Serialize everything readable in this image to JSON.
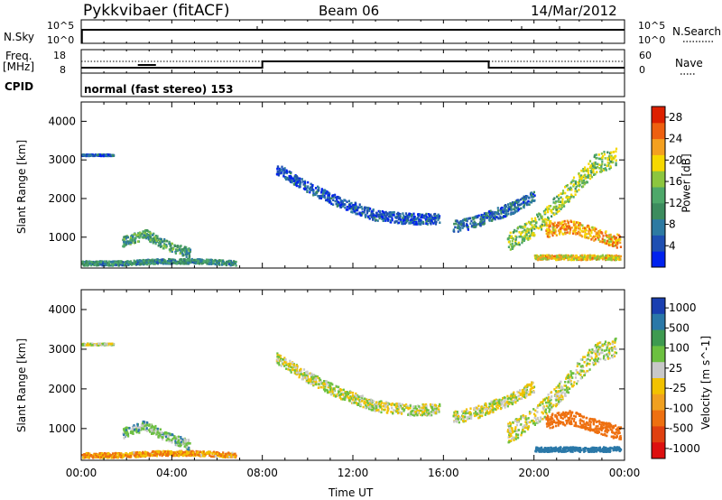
{
  "header": {
    "radar": "Pykkvibaer (fitACF)",
    "beam": "Beam 06",
    "date": "14/Mar/2012"
  },
  "noise_panel": {
    "left_label": "N.Sky",
    "right_label": "N.Search",
    "left_ticks": [
      "10^5",
      "10^0"
    ],
    "right_ticks": [
      "10^5",
      "10^0"
    ]
  },
  "freq_panel": {
    "left_label_line1": "Freq.",
    "left_label_line2": "[MHz]",
    "left_ticks": [
      "18",
      "8"
    ],
    "right_label": "Nave",
    "right_ticks": [
      "60",
      "0"
    ]
  },
  "cpid": {
    "label": "CPID",
    "value": "normal (fast stereo) 153"
  },
  "x_axis": {
    "label": "Time UT",
    "ticks": [
      "00:00",
      "04:00",
      "08:00",
      "12:00",
      "16:00",
      "20:00",
      "00:00"
    ]
  },
  "colors": {
    "power_scale": [
      "#0022ee",
      "#1e4fb2",
      "#2d7aa2",
      "#3c8c5e",
      "#4ea86a",
      "#8cc63f",
      "#f6d800",
      "#f4a020",
      "#ee6010",
      "#dd2000"
    ],
    "velocity_scale": [
      "#1a3fb0",
      "#2a78a8",
      "#3e9a50",
      "#6cc040",
      "#c8c8c8",
      "#f2c200",
      "#f0a020",
      "#ee7010",
      "#e04010",
      "#dd1010"
    ]
  },
  "chart_data": [
    {
      "type": "heatmap",
      "name": "power",
      "ylabel": "Slant Range [km]",
      "xlabel": "",
      "ylim": [
        200,
        4500
      ],
      "y_ticks": [
        1000,
        2000,
        3000,
        4000
      ],
      "colorbar_label": "Power [dB]",
      "colorbar_ticks": [
        4,
        8,
        12,
        16,
        20,
        24,
        28
      ],
      "colorbar_range": [
        0,
        30
      ],
      "scatter_regions": [
        {
          "t0": 8.6,
          "t1": 15.8,
          "r": [
            2800,
            2300,
            1900,
            1600,
            1500,
            1500
          ],
          "spread": 280,
          "db": 5
        },
        {
          "t0": 16.4,
          "t1": 20.0,
          "r": [
            1300,
            1400,
            1600,
            1800,
            2100
          ],
          "spread": 300,
          "db": 7
        },
        {
          "t0": 18.8,
          "t1": 23.6,
          "r": [
            900,
            1200,
            1700,
            2300,
            2900,
            3100
          ],
          "spread": 500,
          "db": 16
        },
        {
          "t0": 20.5,
          "t1": 23.8,
          "r": [
            1200,
            1300,
            1100,
            900
          ],
          "spread": 350,
          "db": 22
        },
        {
          "t0": 20.0,
          "t1": 23.8,
          "r": [
            500,
            500,
            500,
            500
          ],
          "spread": 120,
          "db": 20
        },
        {
          "t0": 0.0,
          "t1": 6.8,
          "r": [
            350,
            350,
            400,
            400,
            350
          ],
          "spread": 120,
          "db": 10
        },
        {
          "t0": 1.8,
          "t1": 4.8,
          "r": [
            900,
            1100,
            800,
            600
          ],
          "spread": 250,
          "db": 12
        },
        {
          "t0": 0.0,
          "t1": 1.4,
          "r": [
            3150,
            3150
          ],
          "spread": 40,
          "db": 5
        }
      ]
    },
    {
      "type": "heatmap",
      "name": "velocity",
      "ylabel": "Slant Range [km]",
      "xlabel": "Time UT",
      "ylim": [
        200,
        4500
      ],
      "y_ticks": [
        1000,
        2000,
        3000,
        4000
      ],
      "colorbar_label": "Velocity [m s^-1]",
      "colorbar_ticks": [
        1000,
        500,
        100,
        25,
        -25,
        -100,
        -500,
        -1000
      ],
      "scatter_regions": [
        {
          "t0": 8.6,
          "t1": 15.8,
          "r": [
            2800,
            2300,
            1900,
            1600,
            1500,
            1500
          ],
          "spread": 280,
          "v": 0
        },
        {
          "t0": 16.4,
          "t1": 20.0,
          "r": [
            1300,
            1400,
            1600,
            1800,
            2100
          ],
          "spread": 300,
          "v": 0
        },
        {
          "t0": 18.8,
          "t1": 23.6,
          "r": [
            900,
            1200,
            1700,
            2300,
            2900,
            3100
          ],
          "spread": 500,
          "v": 0
        },
        {
          "t0": 20.5,
          "t1": 23.8,
          "r": [
            1200,
            1300,
            1100,
            900
          ],
          "spread": 350,
          "v": -300
        },
        {
          "t0": 20.0,
          "t1": 23.8,
          "r": [
            500,
            500,
            500,
            500
          ],
          "spread": 120,
          "v": 300
        },
        {
          "t0": 0.0,
          "t1": 6.8,
          "r": [
            350,
            350,
            400,
            400,
            350
          ],
          "spread": 120,
          "v": -100
        },
        {
          "t0": 1.8,
          "t1": 4.8,
          "r": [
            900,
            1100,
            800,
            600
          ],
          "spread": 250,
          "v": 60
        },
        {
          "t0": 0.0,
          "t1": 1.4,
          "r": [
            3150,
            3150
          ],
          "spread": 40,
          "v": 0
        }
      ]
    }
  ]
}
